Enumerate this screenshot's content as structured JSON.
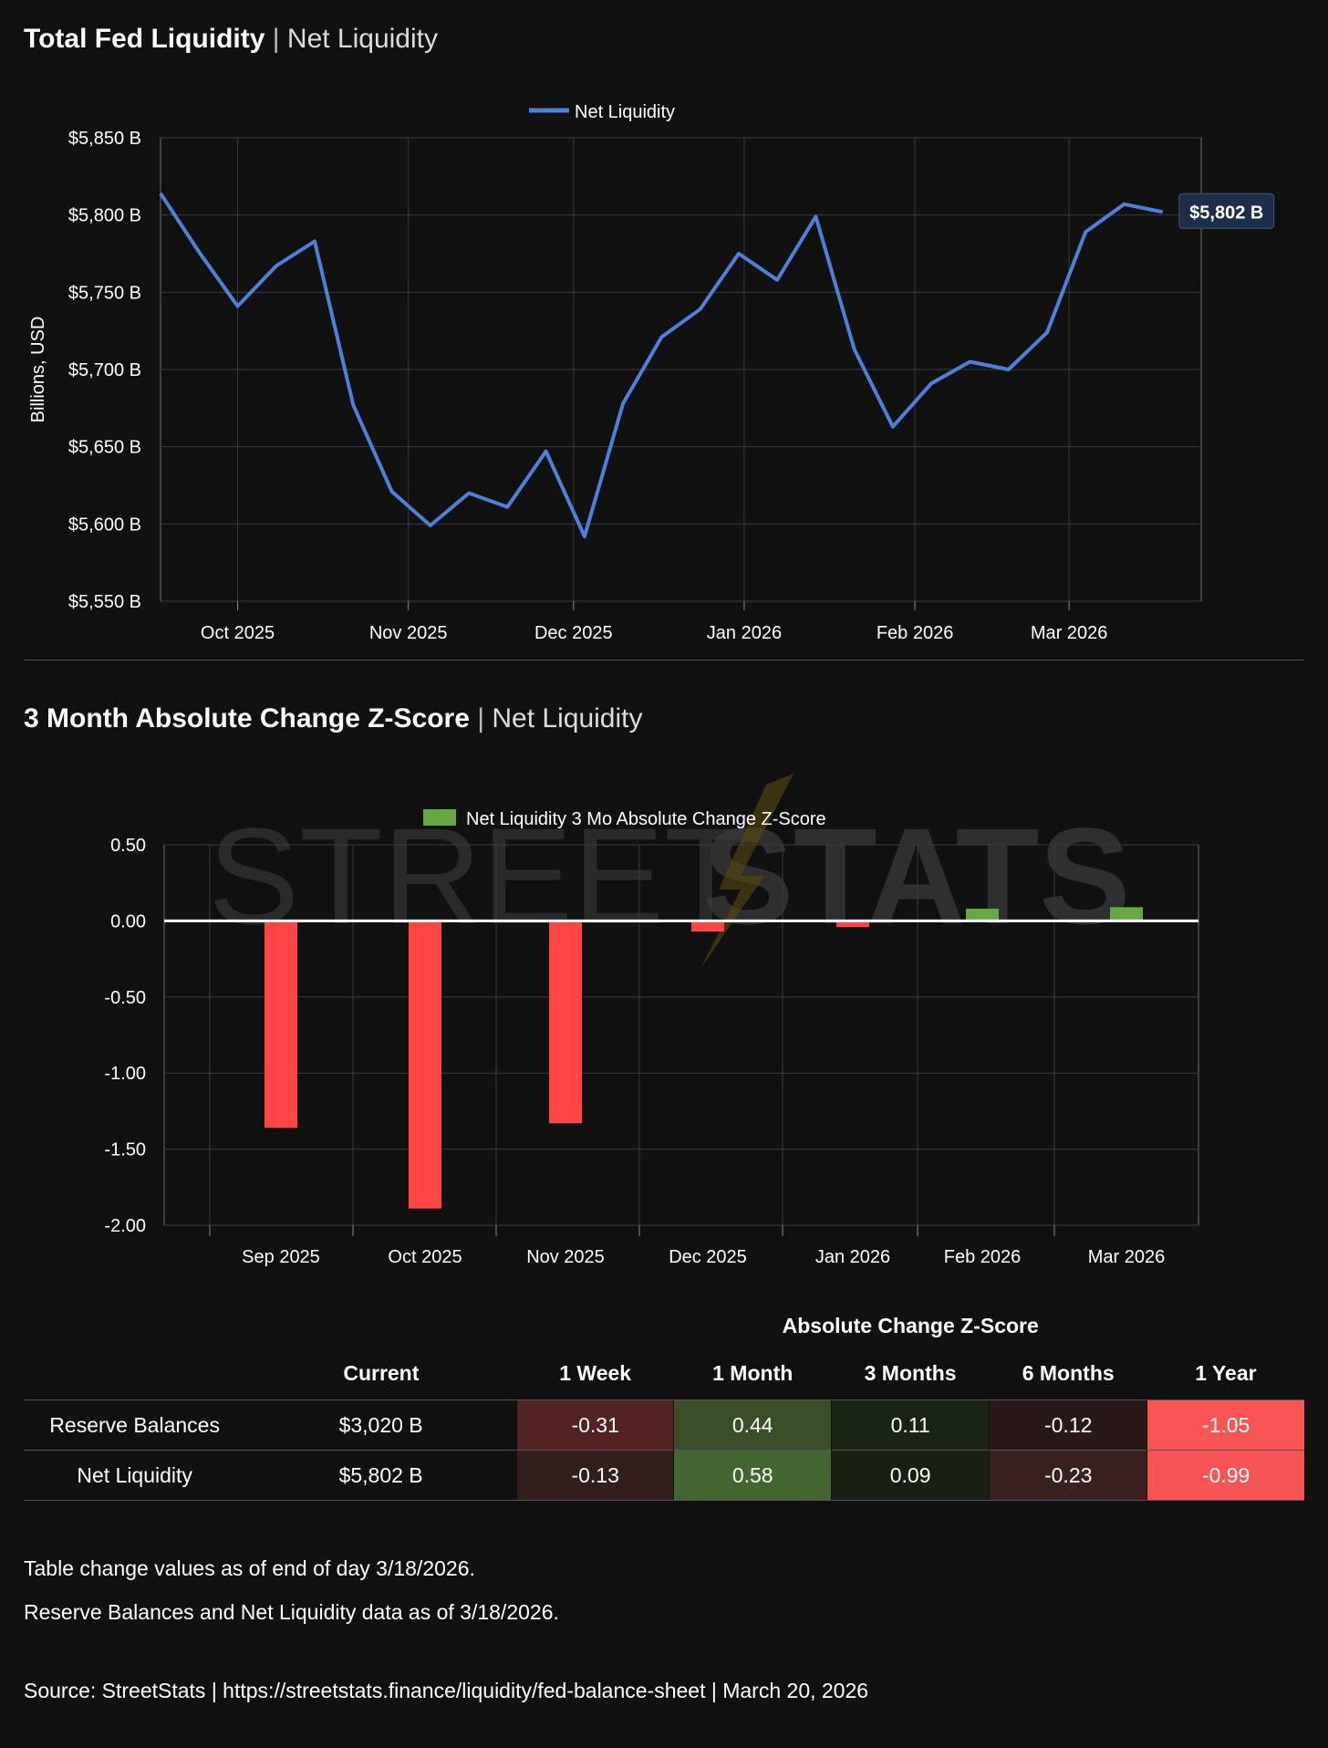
{
  "header1": {
    "title": "Total Fed Liquidity",
    "separator": "|",
    "subtitle": "Net Liquidity"
  },
  "header2": {
    "title": "3 Month Absolute Change Z-Score",
    "separator": "|",
    "subtitle": "Net Liquidity"
  },
  "watermark": {
    "light": "STREET",
    "bold": "STATS"
  },
  "chart_data": [
    {
      "type": "line",
      "legend": "Net Liquidity",
      "legend_position": "top-center",
      "ylabel": "Billions, USD",
      "ylim": [
        5550,
        5850
      ],
      "yticks": [
        5550,
        5600,
        5650,
        5700,
        5750,
        5800,
        5850
      ],
      "ytick_labels": [
        "$5,550 B",
        "$5,600 B",
        "$5,650 B",
        "$5,700 B",
        "$5,750 B",
        "$5,800 B",
        "$5,850 B"
      ],
      "xlim": [
        "2025-09-17",
        "2026-03-25"
      ],
      "xtick_dates": [
        "2025-10-01",
        "2025-11-01",
        "2025-12-01",
        "2026-01-01",
        "2026-02-01",
        "2026-03-01"
      ],
      "xtick_labels": [
        "Oct 2025",
        "Nov 2025",
        "Dec 2025",
        "Jan 2026",
        "Feb 2026",
        "Mar 2026"
      ],
      "grid": true,
      "color": "#4f7fd8",
      "x": [
        "2025-09-17",
        "2025-09-24",
        "2025-10-01",
        "2025-10-08",
        "2025-10-15",
        "2025-10-22",
        "2025-10-29",
        "2025-11-05",
        "2025-11-12",
        "2025-11-19",
        "2025-11-26",
        "2025-12-03",
        "2025-12-10",
        "2025-12-17",
        "2025-12-24",
        "2025-12-31",
        "2026-01-07",
        "2026-01-14",
        "2026-01-21",
        "2026-01-28",
        "2026-02-04",
        "2026-02-11",
        "2026-02-18",
        "2026-02-25",
        "2026-03-04",
        "2026-03-11",
        "2026-03-18"
      ],
      "y": [
        5814,
        5776,
        5741,
        5767,
        5783,
        5677,
        5621,
        5599,
        5620,
        5611,
        5647,
        5592,
        5678,
        5721,
        5739,
        5775,
        5758,
        5799,
        5713,
        5663,
        5691,
        5705,
        5700,
        5724,
        5789,
        5807,
        5802
      ],
      "last_label": "$5,802 B"
    },
    {
      "type": "bar",
      "legend": "Net Liquidity 3 Mo Absolute Change Z-Score",
      "legend_position": "top-center",
      "ylim": [
        -2.0,
        0.5
      ],
      "yticks": [
        -2.0,
        -1.5,
        -1.0,
        -0.5,
        0.0,
        0.5
      ],
      "ytick_labels": [
        "-2.00",
        "-1.50",
        "-1.00",
        "-0.50",
        "0.00",
        "0.50"
      ],
      "grid": true,
      "categories": [
        "Sep 2025",
        "Oct 2025",
        "Nov 2025",
        "Dec 2025",
        "Jan 2026",
        "Feb 2026",
        "Mar 2026"
      ],
      "values": [
        -1.36,
        -1.89,
        -1.33,
        -0.07,
        -0.04,
        0.08,
        0.09
      ],
      "positive_color": "#67a844",
      "negative_color": "#ff4545"
    },
    {
      "type": "table",
      "group_header": "Absolute Change Z-Score",
      "columns": [
        "",
        "Current",
        "1 Week",
        "1 Month",
        "3 Months",
        "6 Months",
        "1 Year"
      ],
      "rows": [
        {
          "name": "Reserve Balances",
          "current": "$3,020 B",
          "values": [
            "-0.31",
            "0.44",
            "0.11",
            "-0.12",
            "-1.05"
          ],
          "colors": [
            "#532323",
            "#3a4e27",
            "#1a2415",
            "#2a1818",
            "#fa5555"
          ]
        },
        {
          "name": "Net Liquidity",
          "current": "$5,802 B",
          "values": [
            "-0.13",
            "0.58",
            "0.09",
            "-0.23",
            "-0.99"
          ],
          "colors": [
            "#331d1d",
            "#436530",
            "#182014",
            "#3b2020",
            "#f55555"
          ]
        }
      ]
    }
  ],
  "notes": [
    "Table change values as of end of day 3/18/2026.",
    "Reserve Balances and Net Liquidity data as of 3/18/2026."
  ],
  "source": "Source:  StreetStats  |  https://streetstats.finance/liquidity/fed-balance-sheet  |  March 20, 2026"
}
